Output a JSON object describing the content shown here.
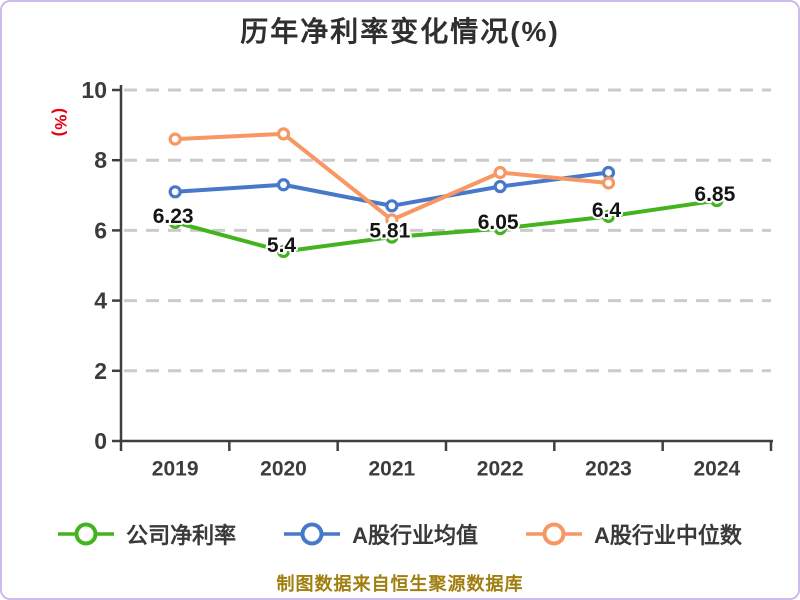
{
  "title": "历年净利率变化情况(%)",
  "y_axis_unit": "(%)",
  "caption": "制图数据来自恒生聚源数据库",
  "chart_data": {
    "type": "line",
    "title": "历年净利率变化情况(%)",
    "categories": [
      "2019",
      "2020",
      "2021",
      "2022",
      "2023",
      "2024"
    ],
    "series": [
      {
        "name": "公司净利率",
        "color": "#44B41E",
        "values": [
          6.23,
          5.4,
          5.81,
          6.05,
          6.4,
          6.85
        ],
        "point_labels": [
          "6.23",
          "5.4",
          "5.81",
          "6.05",
          "6.4",
          "6.85"
        ]
      },
      {
        "name": "A股行业均值",
        "color": "#4778C9",
        "values": [
          7.1,
          7.3,
          6.7,
          7.25,
          7.65,
          null
        ]
      },
      {
        "name": "A股行业中位数",
        "color": "#F79763",
        "values": [
          8.6,
          8.75,
          6.3,
          7.65,
          7.35,
          null
        ]
      }
    ],
    "xlabel": "",
    "ylabel": "(%)",
    "ylim": [
      0,
      10
    ],
    "yticks": [
      0,
      2,
      4,
      6,
      8,
      10
    ],
    "grid": "dashed-horizontal",
    "legend_position": "bottom"
  },
  "colors": {
    "background": "#FFFFFF",
    "border": "#CDBCEB",
    "title_text": "#2F2F2F",
    "axis": "#3F3F3F",
    "tick_label": "#3C3C3C",
    "gridline": "#CBCBCB",
    "unit_text": "#E60012",
    "caption_text": "#A07E10",
    "point_label_text": "#141414",
    "point_fill": "#FFFFFF"
  }
}
